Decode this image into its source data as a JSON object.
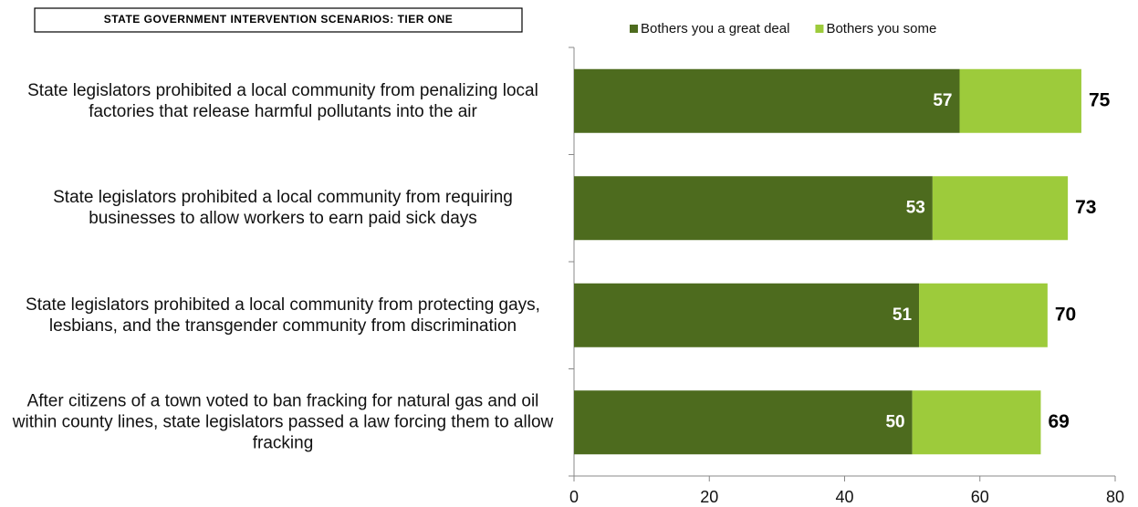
{
  "chart_data": {
    "type": "stacked-bar-horizontal",
    "title": "STATE GOVERNMENT INTERVENTION SCENARIOS: TIER ONE",
    "categories": [
      "State legislators prohibited a local community from penalizing local factories that release harmful pollutants into the air",
      "State legislators prohibited a local community from requiring businesses to allow workers to earn paid sick days",
      "State legislators prohibited a local community from protecting gays, lesbians, and the transgender community from discrimination",
      "After citizens of a town voted to ban fracking for natural gas and oil within county lines, state legislators passed a law forcing them to allow fracking"
    ],
    "series": [
      {
        "name": "Bothers you a great deal",
        "color": "#4d6b1e",
        "values": [
          57,
          53,
          51,
          50
        ]
      },
      {
        "name": "Bothers you some",
        "color": "#9dcb3b",
        "values": [
          18,
          20,
          19,
          19
        ]
      }
    ],
    "totals": [
      75,
      73,
      70,
      69
    ],
    "xlim": [
      0,
      80
    ],
    "xticks": [
      0,
      20,
      40,
      60,
      80
    ]
  }
}
